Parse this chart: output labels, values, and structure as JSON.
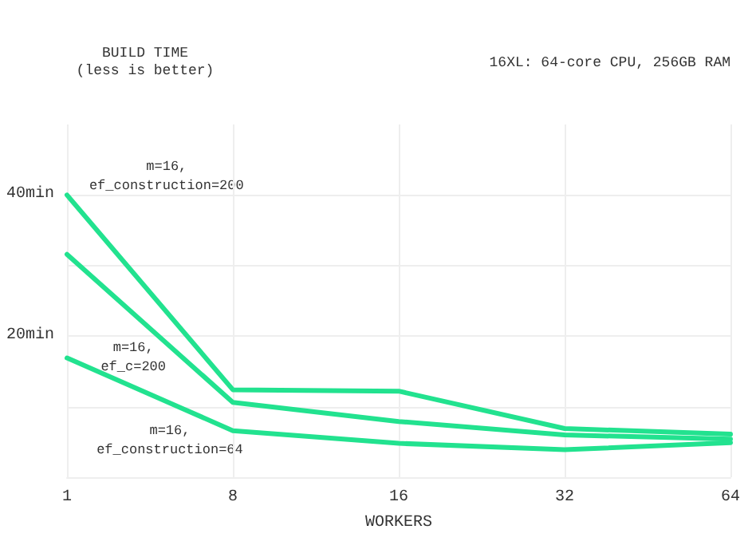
{
  "chart_data": {
    "type": "line",
    "title": "BUILD TIME",
    "subtitle": "(less is better)",
    "xlabel": "WORKERS",
    "categories": [
      "1",
      "8",
      "16",
      "32",
      "64"
    ],
    "series": [
      {
        "name": "m=16,\nef_construction=200",
        "color": "#22e28f",
        "values": [
          40,
          12.4,
          12.2,
          6.9,
          6.1
        ]
      },
      {
        "name": "m=16,\nef_c=200",
        "color": "#22e28f",
        "values": [
          31.6,
          10.6,
          7.9,
          6.0,
          5.4
        ]
      },
      {
        "name": "m=16,\nef_construction=64",
        "color": "#22e28f",
        "values": [
          16.9,
          6.6,
          4.8,
          3.9,
          4.9
        ]
      }
    ],
    "ylim": [
      0,
      50
    ],
    "yticks": [
      {
        "value": 10,
        "label": null
      },
      {
        "value": 20,
        "label": "20min"
      },
      {
        "value": 30,
        "label": null
      },
      {
        "value": 40,
        "label": "40min"
      }
    ],
    "grid": true,
    "legend": false,
    "marker": "none",
    "line_style": "solid",
    "annotations": [
      "16XL: 64-core CPU, 256GB RAM"
    ]
  }
}
